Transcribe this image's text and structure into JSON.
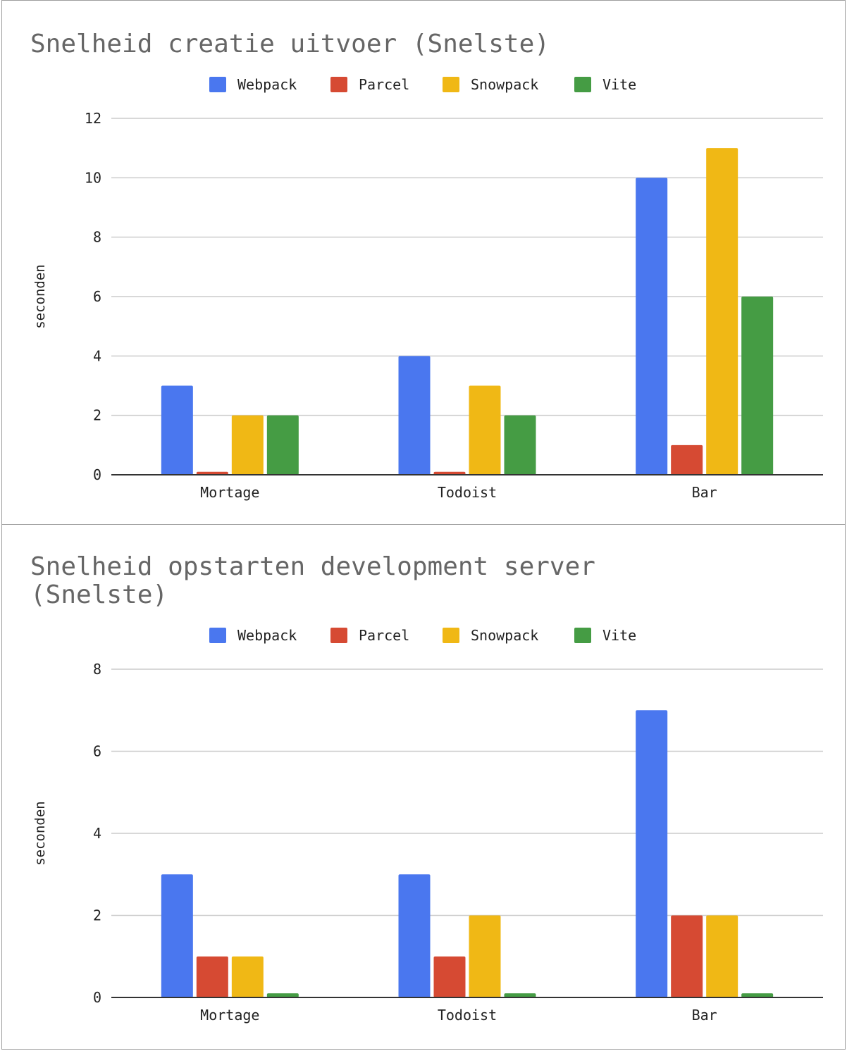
{
  "colors": {
    "webpack": "#4a77ef",
    "parcel": "#d64a33",
    "snowpack": "#f0b815",
    "vite": "#459c44",
    "grid": "#cccccc",
    "axis": "#333333",
    "text": "#222222",
    "title": "#666666"
  },
  "chart_data": [
    {
      "type": "bar",
      "title": "Snelheid creatie uitvoer (Snelste)",
      "ylabel": "seconden",
      "xlabel": "",
      "legend_position": "top",
      "grid": true,
      "ylim": [
        0,
        12
      ],
      "yticks": [
        0,
        2,
        4,
        6,
        8,
        10,
        12
      ],
      "categories": [
        "Mortage",
        "Todoist",
        "Bar"
      ],
      "series": [
        {
          "name": "Webpack",
          "color": "#4a77ef",
          "values": [
            3,
            4,
            10
          ]
        },
        {
          "name": "Parcel",
          "color": "#d64a33",
          "values": [
            0.1,
            0.1,
            1
          ]
        },
        {
          "name": "Snowpack",
          "color": "#f0b815",
          "values": [
            2,
            3,
            11
          ]
        },
        {
          "name": "Vite",
          "color": "#459c44",
          "values": [
            2,
            2,
            6
          ]
        }
      ]
    },
    {
      "type": "bar",
      "title": "Snelheid opstarten development server (Snelste)",
      "ylabel": "seconden",
      "xlabel": "",
      "legend_position": "top",
      "grid": true,
      "ylim": [
        0,
        8
      ],
      "yticks": [
        0,
        2,
        4,
        6,
        8
      ],
      "categories": [
        "Mortage",
        "Todoist",
        "Bar"
      ],
      "series": [
        {
          "name": "Webpack",
          "color": "#4a77ef",
          "values": [
            3,
            3,
            7
          ]
        },
        {
          "name": "Parcel",
          "color": "#d64a33",
          "values": [
            1,
            1,
            2
          ]
        },
        {
          "name": "Snowpack",
          "color": "#f0b815",
          "values": [
            1,
            2,
            2
          ]
        },
        {
          "name": "Vite",
          "color": "#459c44",
          "values": [
            0.1,
            0.1,
            0.1
          ]
        }
      ]
    }
  ]
}
